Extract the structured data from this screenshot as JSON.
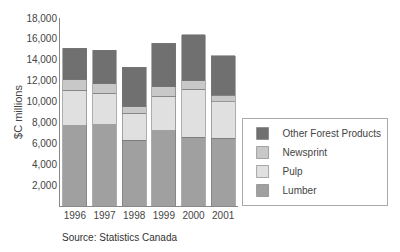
{
  "chart_data": {
    "type": "bar",
    "stacked": true,
    "categories": [
      "1996",
      "1997",
      "1998",
      "1999",
      "2000",
      "2001"
    ],
    "series": [
      {
        "name": "Lumber",
        "color": "#a0a0a0",
        "values": [
          7700,
          7800,
          6300,
          7200,
          6600,
          6500
        ]
      },
      {
        "name": "Pulp",
        "color": "#e0e0e0",
        "values": [
          3400,
          3000,
          2600,
          3300,
          4600,
          3500
        ]
      },
      {
        "name": "Newsprint",
        "color": "#c8c8c8",
        "values": [
          1000,
          900,
          600,
          900,
          800,
          600
        ]
      },
      {
        "name": "Other Forest Products",
        "color": "#707070",
        "values": [
          3000,
          3200,
          3800,
          4200,
          4400,
          3800
        ]
      }
    ],
    "ylabel": "$C millions",
    "ylim": [
      0,
      18000
    ],
    "yticks": [
      {
        "value": 2000,
        "label": "2,000"
      },
      {
        "value": 4000,
        "label": "4,000"
      },
      {
        "value": 6000,
        "label": "6,000"
      },
      {
        "value": 8000,
        "label": "8,000"
      },
      {
        "value": 10000,
        "label": "10,000"
      },
      {
        "value": 12000,
        "label": "12,000"
      },
      {
        "value": 14000,
        "label": "14,000"
      },
      {
        "value": 16000,
        "label": "16,000"
      },
      {
        "value": 18000,
        "label": "18,000"
      }
    ],
    "grid": false,
    "legend": "lower right",
    "annotations": [
      "Source: Statistics Canada"
    ]
  }
}
